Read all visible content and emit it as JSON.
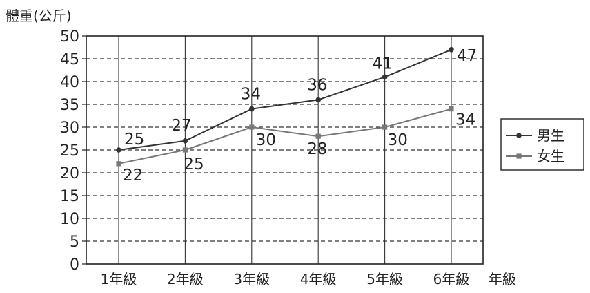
{
  "chart_data": {
    "type": "line",
    "ylabel": "體重(公斤)",
    "xlabel": "年級",
    "categories": [
      "1年級",
      "2年級",
      "3年級",
      "4年級",
      "5年級",
      "6年級"
    ],
    "y_ticks": [
      0,
      5,
      10,
      15,
      20,
      25,
      30,
      35,
      40,
      45,
      50
    ],
    "ylim": [
      0,
      50
    ],
    "grid": true,
    "legend_position": "right",
    "series": [
      {
        "name": "男生",
        "values": [
          25,
          27,
          34,
          36,
          41,
          47
        ],
        "color": "#333333",
        "marker": "circle"
      },
      {
        "name": "女生",
        "values": [
          22,
          25,
          30,
          28,
          30,
          34
        ],
        "color": "#777777",
        "marker": "square"
      }
    ]
  }
}
